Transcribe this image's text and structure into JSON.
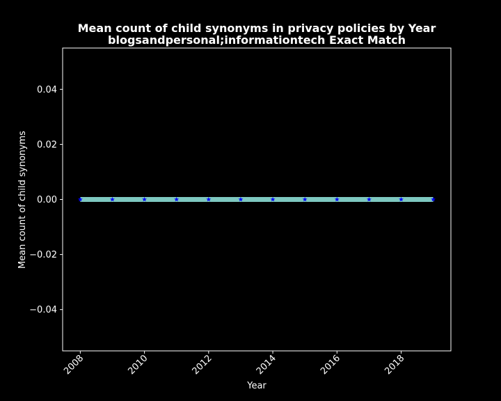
{
  "chart_data": {
    "type": "line",
    "title": "Mean count of child synonyms in privacy policies by Year",
    "subtitle": "blogsandpersonal;informationtech Exact Match",
    "xlabel": "Year",
    "ylabel": "Mean count of child synonyms",
    "x": [
      2008,
      2009,
      2010,
      2011,
      2012,
      2013,
      2014,
      2015,
      2016,
      2017,
      2018,
      2019
    ],
    "series": [
      {
        "values": [
          0,
          0,
          0,
          0,
          0,
          0,
          0,
          0,
          0,
          0,
          0,
          0
        ],
        "color": "#7ec8c0",
        "marker": "star",
        "marker_color": "#0000ff"
      }
    ],
    "xlim": [
      2007.45,
      2019.55
    ],
    "ylim": [
      -0.055,
      0.055
    ],
    "xticks": [
      2008,
      2010,
      2012,
      2014,
      2016,
      2018
    ],
    "xtick_labels": [
      "2008",
      "2010",
      "2012",
      "2014",
      "2016",
      "2018"
    ],
    "yticks": [
      -0.04,
      -0.02,
      0.0,
      0.02,
      0.04
    ],
    "ytick_labels": [
      "−0.04",
      "−0.02",
      "0.00",
      "0.02",
      "0.04"
    ],
    "grid": false,
    "legend": false,
    "background": "#000000",
    "foreground": "#ffffff"
  }
}
